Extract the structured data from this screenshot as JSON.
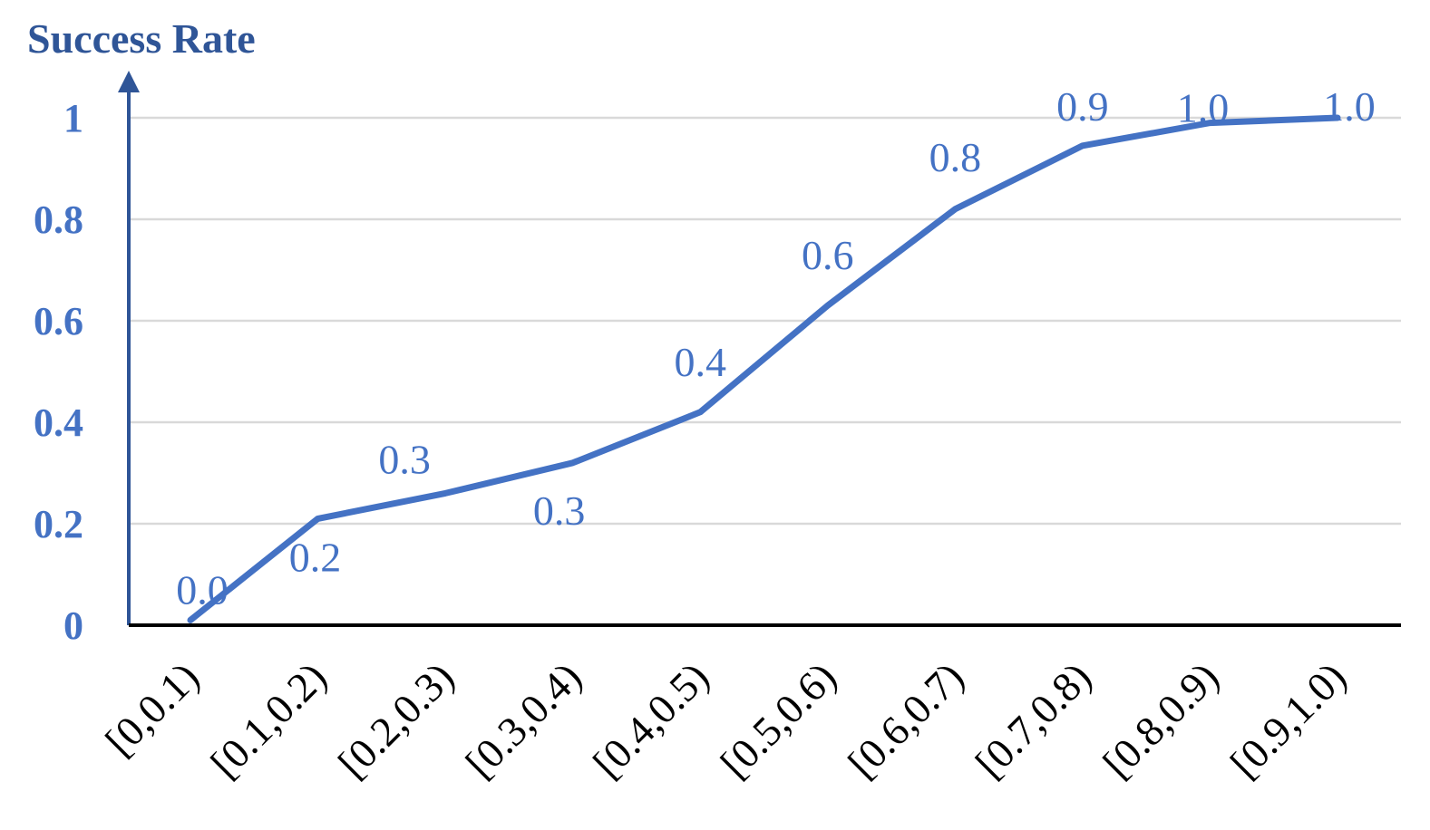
{
  "chart_data": {
    "type": "line",
    "title": "",
    "ylabel": "Success Rate",
    "xlabel": "",
    "categories": [
      "[0,0.1)",
      "[0.1,0.2)",
      "[0.2,0.3)",
      "[0.3,0.4)",
      "[0.4,0.5)",
      "[0.5,0.6)",
      "[0.6,0.7)",
      "[0.7,0.8)",
      "[0.8,0.9)",
      "[0.9,1.0)"
    ],
    "series": [
      {
        "values": [
          0.01,
          0.21,
          0.26,
          0.32,
          0.42,
          0.63,
          0.82,
          0.945,
          0.99,
          1.0
        ],
        "data_labels": [
          "0.0",
          "0.2",
          "0.3",
          "0.3",
          "0.4",
          "0.6",
          "0.8",
          "0.9",
          "1.0",
          "1.0"
        ]
      }
    ],
    "y_ticks": [
      "0",
      "0.2",
      "0.4",
      "0.6",
      "0.8",
      "1"
    ],
    "ylim": [
      0,
      1
    ],
    "grid": true,
    "legend": "none",
    "colors": {
      "line": "#4472C4",
      "axis_title": "#2F5597",
      "tick_labels": "#4472C4",
      "gridline": "#D9D9D9",
      "x_axis": "#000000",
      "y_axis": "#2F5597"
    }
  }
}
